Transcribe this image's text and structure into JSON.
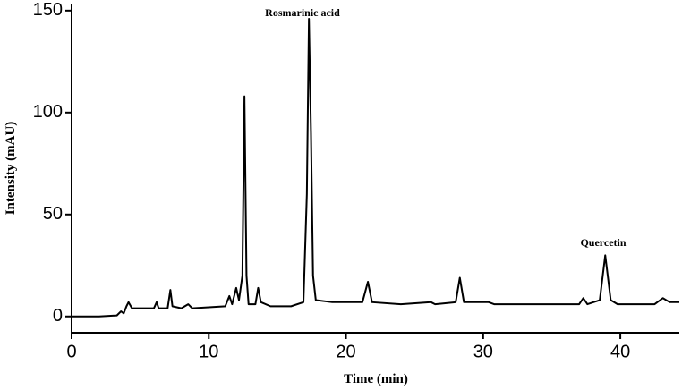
{
  "chart_data": {
    "type": "line",
    "xlabel": "Time (min)",
    "ylabel": "Intensity (mAU)",
    "annotations": [
      "Rosmarinic acid",
      "Quercetin"
    ],
    "color": "#000000",
    "grid": false,
    "xlim": [
      0,
      44.3
    ],
    "ylim": [
      -8,
      153
    ],
    "xticks": [
      0,
      10,
      20,
      30,
      40
    ],
    "yticks": [
      0,
      50,
      100,
      150
    ],
    "x": [
      0,
      2,
      3.3,
      3.6,
      3.8,
      4.0,
      4.15,
      4.4,
      5,
      6.0,
      6.2,
      6.35,
      7.0,
      7.2,
      7.35,
      8.0,
      8.5,
      8.8,
      10,
      11.2,
      11.5,
      11.7,
      12.0,
      12.2,
      12.45,
      12.6,
      12.75,
      12.9,
      13.4,
      13.6,
      13.8,
      14.5,
      16.0,
      16.9,
      17.15,
      17.3,
      17.45,
      17.6,
      17.8,
      19,
      21.2,
      21.6,
      21.9,
      24,
      26.2,
      26.5,
      28.0,
      28.3,
      28.6,
      30.4,
      30.8,
      34,
      37.0,
      37.3,
      37.6,
      38.5,
      38.9,
      39.3,
      39.8,
      42.5,
      43.1,
      43.6,
      44.3
    ],
    "y": [
      0,
      0,
      0.5,
      2.5,
      1.5,
      5,
      7,
      4,
      4,
      4,
      7,
      4,
      4,
      13,
      5,
      4,
      6,
      4,
      4.5,
      5,
      10,
      6,
      14,
      8,
      20,
      108,
      20,
      6,
      6,
      14,
      7,
      5,
      5,
      7,
      60,
      146,
      90,
      20,
      8,
      7,
      7,
      17,
      7,
      6,
      7,
      6,
      7,
      19,
      7,
      7,
      6,
      6,
      6,
      9,
      6,
      8,
      30,
      8,
      6,
      6,
      9,
      7,
      7
    ]
  }
}
